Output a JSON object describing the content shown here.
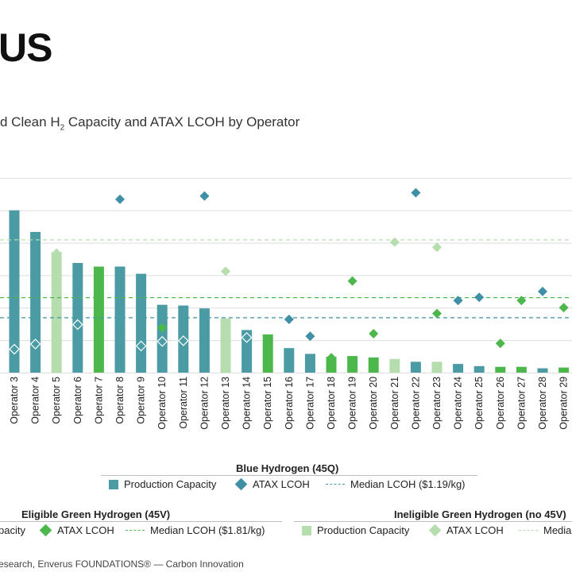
{
  "header": {
    "title": "US"
  },
  "chart_title": {
    "pre": "d Clean H",
    "sub": "2",
    "post": " Capacity and ATAX LCOH by Operator"
  },
  "legends": {
    "blue": {
      "title": "Blue Hydrogen (45Q)",
      "capacity_label": "Production Capacity",
      "lcoh_label": "ATAX LCOH",
      "median_label": "Median LCOH ($1.19/kg)"
    },
    "green": {
      "title": "Eligible Green Hydrogen (45V)",
      "capacity_label": "pacity",
      "lcoh_label": "ATAX LCOH",
      "median_label": "Median LCOH ($1.81/kg)"
    },
    "ineligible": {
      "title": "Ineligible Green Hydrogen (no 45V)",
      "capacity_label": "Production Capacity",
      "lcoh_label": "ATAX LCOH",
      "median_label": "Media"
    }
  },
  "footer": "esearch, Enverus FOUNDATIONS® — Carbon Innovation",
  "colors": {
    "blue": "#4a9ba3",
    "blue_diamond": "#3f8fa6",
    "green": "#4cb84c",
    "ineligible": "#b5ddae",
    "grid": "#dedede"
  },
  "chart_data": {
    "type": "bar",
    "categories": [
      "Operator 3",
      "Operator 4",
      "Operator 5",
      "Operator 6",
      "Operator 7",
      "Operator 8",
      "Operator 9",
      "Operator 10",
      "Operator 11",
      "Operator 12",
      "Operator 13",
      "Operator 14",
      "Operator 15",
      "Operator 16",
      "Operator 17",
      "Operator 18",
      "Operator 19",
      "Operator 20",
      "Operator 21",
      "Operator 22",
      "Operator 23",
      "Operator 24",
      "Operator 25",
      "Operator 26",
      "Operator 27",
      "Operator 28",
      "Operator 29"
    ],
    "capacity_type": [
      "blue",
      "blue",
      "ineligible",
      "blue",
      "green",
      "blue",
      "blue",
      "blue",
      "blue",
      "blue",
      "ineligible",
      "blue",
      "green",
      "blue",
      "blue",
      "green",
      "green",
      "green",
      "ineligible",
      "blue",
      "ineligible",
      "blue",
      "blue",
      "green",
      "green",
      "blue",
      "green"
    ],
    "capacity": [
      22.5,
      19.5,
      16.7,
      15.2,
      14.7,
      14.7,
      13.7,
      9.4,
      9.3,
      8.9,
      7.5,
      5.9,
      5.3,
      3.4,
      2.6,
      2.2,
      2.3,
      2.1,
      1.9,
      1.5,
      1.5,
      1.2,
      0.9,
      0.8,
      0.8,
      0.6,
      0.7
    ],
    "capacity_ylim": [
      0,
      31.5
    ],
    "lcoh_points": [
      {
        "category": "Operator 3",
        "type": "blue",
        "value": 0.22
      },
      {
        "category": "Operator 4",
        "type": "blue",
        "value": 0.38
      },
      {
        "category": "Operator 5",
        "type": "ineligible",
        "value": 3.18
      },
      {
        "category": "Operator 6",
        "type": "blue",
        "value": 0.98
      },
      {
        "category": "Operator 7",
        "type": "green",
        "value": 0.32
      },
      {
        "category": "Operator 8",
        "type": "blue",
        "value": 4.84
      },
      {
        "category": "Operator 9",
        "type": "blue",
        "value": 0.32
      },
      {
        "category": "Operator 10",
        "type": "green",
        "value": 0.88
      },
      {
        "category": "Operator 10",
        "type": "blue",
        "value": 0.46
      },
      {
        "category": "Operator 11",
        "type": "blue",
        "value": 0.48
      },
      {
        "category": "Operator 12",
        "type": "blue",
        "value": 4.94
      },
      {
        "category": "Operator 13",
        "type": "ineligible",
        "value": 2.62
      },
      {
        "category": "Operator 14",
        "type": "blue",
        "value": 0.58
      },
      {
        "category": "Operator 15",
        "type": "green",
        "value": 0.5
      },
      {
        "category": "Operator 16",
        "type": "blue",
        "value": 1.14
      },
      {
        "category": "Operator 17",
        "type": "blue",
        "value": 0.62
      },
      {
        "category": "Operator 18",
        "type": "green",
        "value": -0.04
      },
      {
        "category": "Operator 19",
        "type": "green",
        "value": 2.32
      },
      {
        "category": "Operator 20",
        "type": "green",
        "value": 0.7
      },
      {
        "category": "Operator 21",
        "type": "ineligible",
        "value": 3.52
      },
      {
        "category": "Operator 22",
        "type": "blue",
        "value": 5.04
      },
      {
        "category": "Operator 23",
        "type": "ineligible",
        "value": 3.36
      },
      {
        "category": "Operator 23",
        "type": "green",
        "value": 1.32
      },
      {
        "category": "Operator 24",
        "type": "blue",
        "value": 1.72
      },
      {
        "category": "Operator 25",
        "type": "blue",
        "value": 1.82
      },
      {
        "category": "Operator 26",
        "type": "green",
        "value": 0.4
      },
      {
        "category": "Operator 27",
        "type": "green",
        "value": 1.72
      },
      {
        "category": "Operator 28",
        "type": "blue",
        "value": 2.0
      },
      {
        "category": "Operator 29",
        "type": "green",
        "value": 1.5
      }
    ],
    "lcoh_ylim": [
      -0.5,
      6.5
    ],
    "medians": {
      "blue": 1.19,
      "green": 1.81,
      "ineligible": 3.59
    },
    "y_gridlines": [
      -0.5,
      0.5,
      1.5,
      2.5,
      3.5,
      4.5,
      5.5
    ],
    "grid": true,
    "legend_position": "bottom"
  }
}
